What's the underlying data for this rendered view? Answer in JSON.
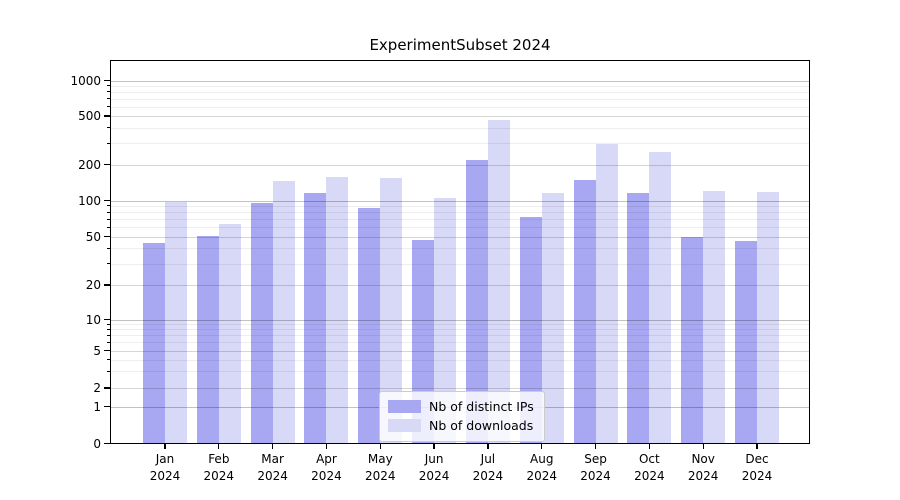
{
  "figure": {
    "title": "ExperimentSubset 2024"
  },
  "chart_data": {
    "type": "bar",
    "title": "ExperimentSubset 2024",
    "subtitle": "",
    "xlabel": "",
    "ylabel": "",
    "yscale": "symlog",
    "ylim": [
      0,
      1500
    ],
    "grid": true,
    "legend_position": "lower center",
    "categories": [
      "Jan",
      "Feb",
      "Mar",
      "Apr",
      "May",
      "Jun",
      "Jul",
      "Aug",
      "Sep",
      "Oct",
      "Nov",
      "Dec"
    ],
    "year_label": "2024",
    "ytick_labels": [
      "0",
      "1",
      "2",
      "5",
      "10",
      "20",
      "50",
      "100",
      "200",
      "500",
      "1000"
    ],
    "series": [
      {
        "name": "Nb of distinct IPs",
        "color": "#a8a8f2",
        "values": [
          45,
          51,
          97,
          117,
          88,
          47,
          220,
          74,
          151,
          117,
          50,
          46
        ]
      },
      {
        "name": "Nb of downloads",
        "color": "#d8d8f7",
        "values": [
          98,
          64,
          148,
          160,
          157,
          107,
          465,
          117,
          300,
          258,
          122,
          119
        ]
      }
    ]
  }
}
